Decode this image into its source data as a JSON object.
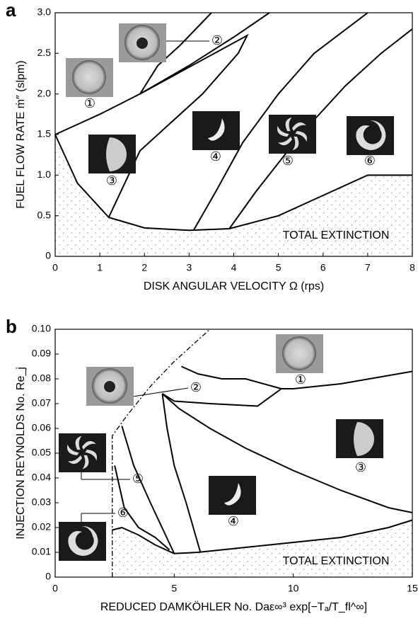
{
  "chart_data": [
    {
      "type": "line",
      "panel": "a",
      "xlabel": "DISK ANGULAR VELOCITY   Ω   (rps)",
      "ylabel": "FUEL FLOW RATE   ṁ″  (slpm)",
      "region_label": "TOTAL EXTINCTION",
      "annotations": [
        "①",
        "②",
        "③",
        "④",
        "⑤",
        "⑥"
      ],
      "xlim": [
        0,
        8
      ],
      "ylim": [
        0,
        3
      ],
      "xticks": [
        0,
        1,
        2,
        3,
        4,
        5,
        6,
        7,
        8
      ],
      "yticks": [
        0,
        0.5,
        {
          "value": 1,
          "label": "1.0"
        },
        1.5,
        {
          "value": 2,
          "label": "2.0"
        },
        2.5,
        {
          "value": 3,
          "label": "3.0"
        }
      ],
      "series": [
        {
          "color": "#000000",
          "x": [
            0,
            1,
            1.9,
            3,
            4,
            4.8
          ],
          "values": [
            1.5,
            1.75,
            2.0,
            2.35,
            2.7,
            3.0
          ]
        },
        {
          "color": "#000000",
          "x": [
            1.9,
            2.3,
            2.8,
            3.5
          ],
          "values": [
            2.0,
            2.35,
            2.6,
            3.0
          ]
        },
        {
          "color": "#000000",
          "x": [
            1.9,
            4.3,
            4.1,
            3.3,
            2.5,
            1.9,
            1.2
          ],
          "values": [
            2.0,
            2.72,
            2.5,
            2.0,
            1.6,
            1.3,
            0.48
          ]
        },
        {
          "color": "#000000",
          "hatched": true,
          "x": [
            0,
            0.5,
            1.2,
            2,
            3,
            3.9,
            5,
            6,
            7,
            8
          ],
          "values": [
            1.5,
            0.9,
            0.48,
            0.35,
            0.32,
            0.34,
            0.5,
            0.75,
            1.0,
            1.0
          ]
        },
        {
          "color": "#000000",
          "x": [
            3.1,
            3.6,
            4.2,
            5,
            5.8,
            7
          ],
          "values": [
            0.32,
            0.8,
            1.4,
            2.0,
            2.5,
            3.0
          ]
        },
        {
          "color": "#000000",
          "x": [
            3.9,
            4.5,
            5.5,
            6.5,
            7.3,
            8
          ],
          "values": [
            0.34,
            0.8,
            1.5,
            2.1,
            2.5,
            2.8
          ]
        }
      ]
    },
    {
      "type": "line",
      "panel": "b",
      "xlabel": "REDUCED DAMKÖHLER No.   Daε∞³ exp[−Tₐ/T_fl^∞]",
      "ylabel": "INJECTION REYNOLDS No.   Re_j",
      "region_label": "TOTAL EXTINCTION",
      "annotations": [
        "①",
        "②",
        "③",
        "④",
        "⑤",
        "⑥"
      ],
      "xlim": [
        0,
        15
      ],
      "ylim": [
        0,
        0.1
      ],
      "xticks": [
        0,
        5,
        10,
        15
      ],
      "yticks": [
        0,
        0.01,
        0.02,
        0.03,
        0.04,
        0.05,
        0.06,
        0.07,
        0.08,
        0.09,
        {
          "value": 0.1,
          "label": "0.10"
        }
      ],
      "series": [
        {
          "color": "#000000",
          "dash": "dash-dot",
          "x": [
            2.4,
            2.4,
            3,
            4,
            5,
            6.5
          ],
          "values": [
            0,
            0.057,
            0.065,
            0.077,
            0.087,
            0.1
          ]
        },
        {
          "color": "#000000",
          "hatched": true,
          "x": [
            2.4,
            2.8,
            3.5,
            4.2,
            5,
            6,
            8,
            10,
            12,
            14,
            15
          ],
          "values": [
            0.019,
            0.02,
            0.017,
            0.013,
            0.0095,
            0.01,
            0.012,
            0.014,
            0.016,
            0.02,
            0.023
          ]
        },
        {
          "color": "#000000",
          "x": [
            5.3,
            6,
            7,
            8,
            9.5,
            10,
            12,
            15
          ],
          "values": [
            0.085,
            0.082,
            0.08,
            0.08,
            0.076,
            0.076,
            0.078,
            0.083
          ]
        },
        {
          "color": "#000000",
          "x": [
            4.5,
            5,
            6.5,
            8.5,
            9.5
          ],
          "values": [
            0.074,
            0.071,
            0.07,
            0.069,
            0.076
          ]
        },
        {
          "color": "#000000",
          "x": [
            4.5,
            5.2,
            6.5,
            8,
            10,
            12,
            14,
            15
          ],
          "values": [
            0.074,
            0.068,
            0.06,
            0.052,
            0.043,
            0.035,
            0.028,
            0.026
          ]
        },
        {
          "color": "#000000",
          "x": [
            4.5,
            4.7,
            5,
            5.5,
            6.1
          ],
          "values": [
            0.074,
            0.06,
            0.045,
            0.03,
            0.01
          ]
        },
        {
          "color": "#000000",
          "x": [
            2.8,
            3.3,
            4,
            5
          ],
          "values": [
            0.061,
            0.045,
            0.03,
            0.0095
          ]
        },
        {
          "color": "#000000",
          "x": [
            2.5,
            2.9,
            3.5,
            4.2,
            4.8
          ],
          "values": [
            0.045,
            0.028,
            0.02,
            0.016,
            0.011
          ]
        }
      ]
    }
  ]
}
